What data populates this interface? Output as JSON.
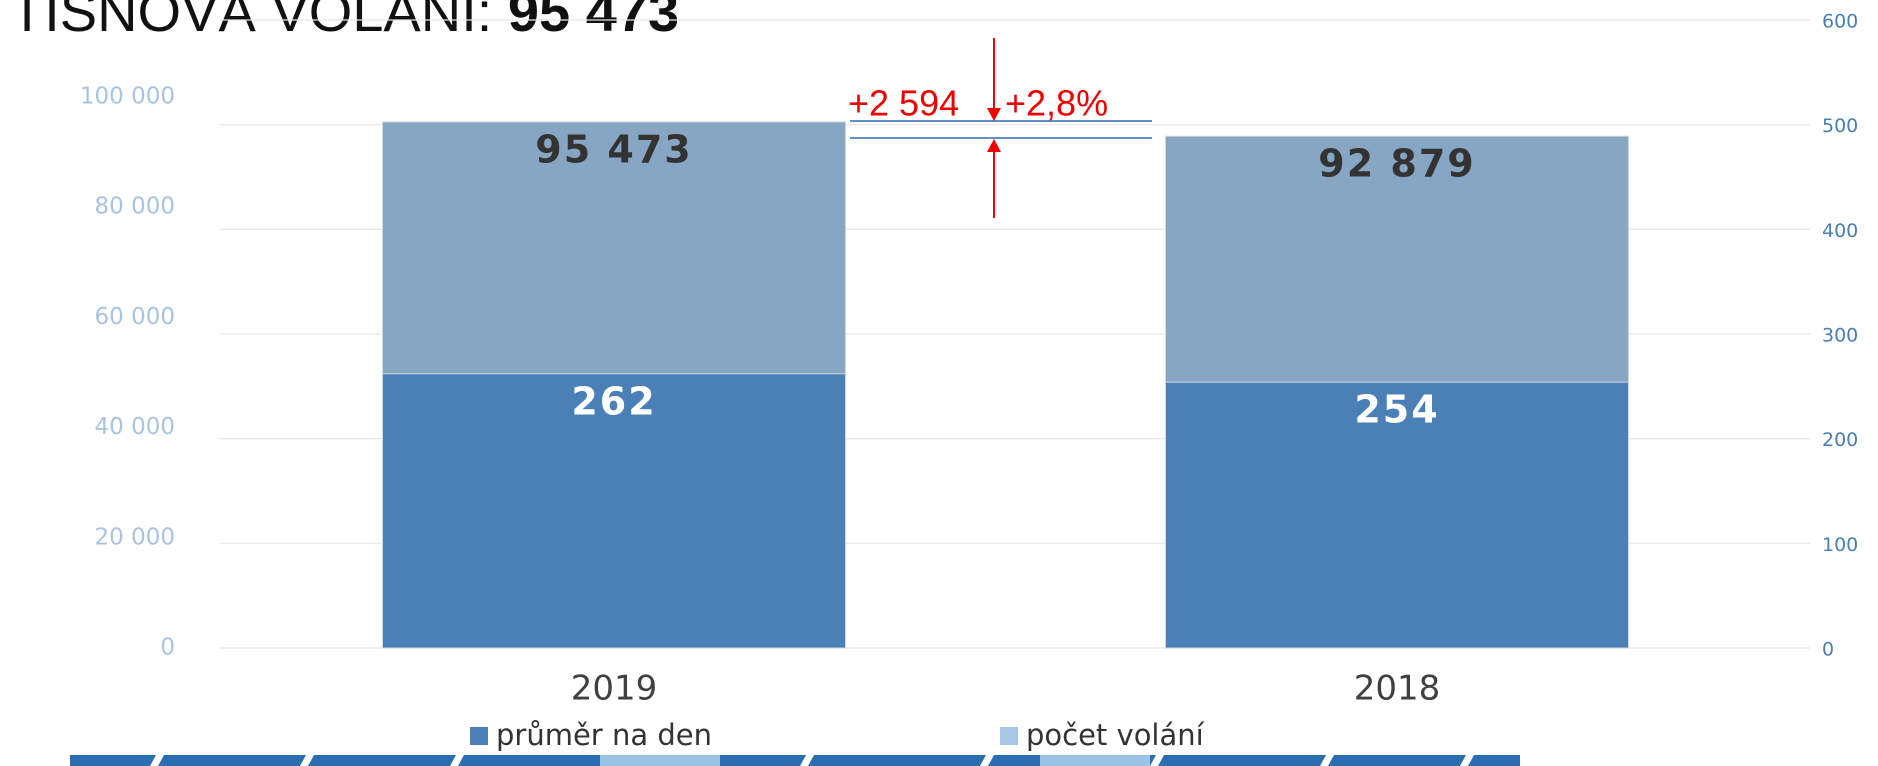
{
  "chart_data": {
    "type": "bar",
    "title": "TÍSŇOVÁ VOLÁNÍ: ",
    "title_value": "95 473",
    "categories": [
      "2019",
      "2018"
    ],
    "series": [
      {
        "name": "počet volání",
        "color": "#86a6c4",
        "values": [
          95473,
          92879
        ],
        "value_labels": [
          "95 473",
          "92 879"
        ]
      },
      {
        "name": "průměr na den",
        "color": "#4a80b6",
        "values": [
          262,
          254
        ],
        "axis": "y2"
      }
    ],
    "ylim": [
      0,
      100000
    ],
    "yticks": [
      0,
      {
        "value": 20000,
        "label": "20 000"
      },
      {
        "value": 40000,
        "label": "40 000"
      },
      {
        "value": 60000,
        "label": "60 000"
      },
      {
        "value": 80000,
        "label": "80 000"
      },
      {
        "value": 100000,
        "label": "100 000"
      }
    ],
    "y2lim": [
      0,
      600
    ],
    "y2ticks": [
      0,
      100,
      200,
      300,
      400,
      500,
      600
    ],
    "grid": true,
    "annotations": [
      "+2 594",
      "+2,8%"
    ]
  }
}
